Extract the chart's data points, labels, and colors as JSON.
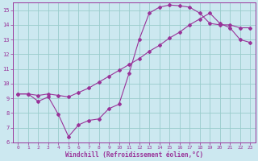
{
  "xlabel": "Windchill (Refroidissement éolien,°C)",
  "bg_color": "#cce8f0",
  "grid_color": "#99cccc",
  "line_color": "#993399",
  "xlim": [
    -0.5,
    23.5
  ],
  "ylim": [
    6,
    15.5
  ],
  "xticks": [
    0,
    1,
    2,
    3,
    4,
    5,
    6,
    7,
    8,
    9,
    10,
    11,
    12,
    13,
    14,
    15,
    16,
    17,
    18,
    19,
    20,
    21,
    22,
    23
  ],
  "yticks": [
    6,
    7,
    8,
    9,
    10,
    11,
    12,
    13,
    14,
    15
  ],
  "curve1_x": [
    0,
    1,
    2,
    3,
    4,
    5,
    6,
    7,
    8,
    9,
    10,
    11,
    12,
    13,
    14,
    15,
    16,
    17,
    18,
    19,
    20,
    21,
    22,
    23
  ],
  "curve1_y": [
    9.3,
    9.3,
    8.8,
    9.1,
    7.9,
    6.4,
    7.2,
    7.5,
    7.6,
    8.3,
    8.6,
    10.7,
    13.0,
    14.8,
    15.2,
    15.35,
    15.3,
    15.2,
    14.8,
    14.1,
    14.0,
    14.0,
    13.8,
    13.8
  ],
  "curve2_x": [
    0,
    1,
    2,
    3,
    4,
    5,
    6,
    7,
    8,
    9,
    10,
    11,
    12,
    13,
    14,
    15,
    16,
    17,
    18,
    19,
    20,
    21,
    22,
    23
  ],
  "curve2_y": [
    9.3,
    9.3,
    9.2,
    9.3,
    9.2,
    9.1,
    9.4,
    9.7,
    10.1,
    10.5,
    10.9,
    11.3,
    11.7,
    12.2,
    12.6,
    13.1,
    13.5,
    14.0,
    14.4,
    14.8,
    14.1,
    13.8,
    13.0,
    12.8
  ]
}
